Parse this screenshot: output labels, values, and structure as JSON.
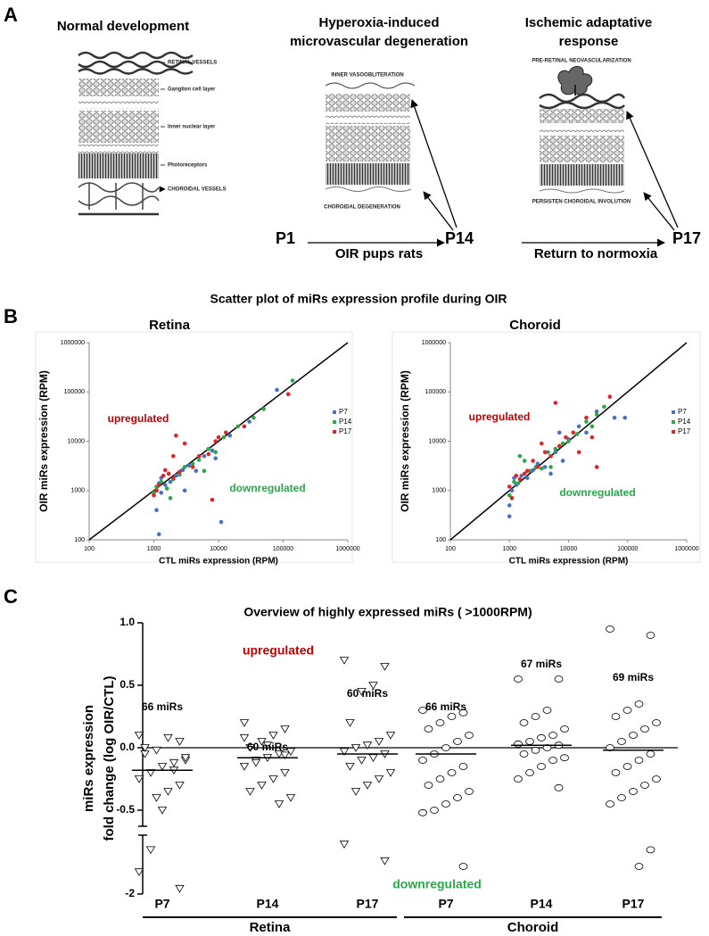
{
  "panel_labels": [
    "A",
    "B",
    "C"
  ],
  "figure_a": {
    "titles": [
      [
        "Normal development"
      ],
      [
        "Hyperoxia-induced",
        "microvascular degeneration"
      ],
      [
        "Ischemic adaptative",
        "response"
      ]
    ],
    "layer_labels": [
      "RETINAL VESSELS",
      "Ganglion cell layer",
      "Inner nuclear layer",
      "Photoreceptors",
      "CHOROIDAL VESSELS",
      "INNER VASOOBLITERATION",
      "CHOROIDAL DEGENERATION",
      "PRE-RETINAL NEOVASCULARIZATION",
      "PERSISTEN CHOROIDAL INVOLUTION"
    ],
    "timeline": {
      "points": [
        "P1",
        "P14",
        "P17"
      ],
      "phases": [
        "OIR pups rats",
        "Return to normoxia"
      ]
    }
  },
  "section_b_title": "Scatter plot of miRs expression profile during OIR",
  "chart_data": [
    {
      "type": "scatter",
      "title": "Retina",
      "xlabel": "CTL miRs expression (RPM)",
      "ylabel": "OIR miRs expression (RPM)",
      "log_scale": true,
      "xlim": [
        100,
        1000000
      ],
      "ylim": [
        100,
        1000000
      ],
      "xticks": [
        100,
        1000,
        10000,
        100000,
        1000000
      ],
      "yticks": [
        100,
        1000,
        10000,
        100000,
        1000000
      ],
      "identity_line": true,
      "legend": "right",
      "annotations": [
        {
          "text": "upregulated",
          "color": "#c00000"
        },
        {
          "text": "downregulated",
          "color": "#2aa84a"
        }
      ],
      "series": [
        {
          "name": "P7",
          "color": "#4a6fc7",
          "x": [
            1100,
            1200,
            1300,
            1500,
            1800,
            2200,
            2800,
            3500,
            4500,
            6000,
            8000,
            9000,
            11000,
            15000,
            30000,
            80000,
            1200,
            1100,
            1300,
            3000
          ],
          "y": [
            1000,
            1400,
            900,
            1300,
            1500,
            2000,
            2600,
            3200,
            2500,
            5000,
            6500,
            4500,
            230,
            13000,
            25000,
            110000,
            130,
            400,
            1800,
            1000
          ]
        },
        {
          "name": "P14",
          "color": "#2aa84a",
          "x": [
            1000,
            1100,
            1300,
            1600,
            2000,
            2500,
            3000,
            4000,
            5000,
            7000,
            9000,
            12000,
            20000,
            35000,
            50000,
            140000,
            6000,
            1800
          ],
          "y": [
            900,
            1200,
            1500,
            1100,
            1700,
            2100,
            3000,
            3500,
            4200,
            7000,
            6000,
            12000,
            20000,
            30000,
            45000,
            170000,
            2500,
            700
          ]
        },
        {
          "name": "P17",
          "color": "#e0242a",
          "x": [
            1000,
            1100,
            1200,
            1400,
            1700,
            2000,
            2500,
            3000,
            4000,
            5000,
            7000,
            9000,
            10000,
            13000,
            25000,
            120000,
            8000,
            1500,
            2200,
            2000
          ],
          "y": [
            800,
            1000,
            1300,
            2000,
            2200,
            1800,
            2400,
            9000,
            3000,
            5000,
            5500,
            10000,
            12000,
            15000,
            20000,
            90000,
            650,
            2600,
            13000,
            5000
          ]
        }
      ]
    },
    {
      "type": "scatter",
      "title": "Choroid",
      "xlabel": "CTL miRs expression (RPM)",
      "ylabel": "OIR miRs expression (RPM)",
      "log_scale": true,
      "xlim": [
        100,
        1000000
      ],
      "ylim": [
        100,
        1000000
      ],
      "xticks": [
        100,
        1000,
        10000,
        100000,
        1000000
      ],
      "yticks": [
        100,
        1000,
        10000,
        100000,
        1000000
      ],
      "identity_line": true,
      "legend": "right",
      "annotations": [
        {
          "text": "upregulated",
          "color": "#c00000"
        },
        {
          "text": "downregulated",
          "color": "#2aa84a"
        }
      ],
      "series": [
        {
          "name": "P7",
          "color": "#4a6fc7",
          "x": [
            1000,
            1000,
            1100,
            1300,
            1600,
            2000,
            2500,
            3000,
            4000,
            5000,
            6000,
            8000,
            10000,
            15000,
            20000,
            30000,
            60000,
            90000,
            1200,
            7000
          ],
          "y": [
            300,
            500,
            1000,
            1300,
            2000,
            1800,
            2600,
            3500,
            3000,
            2200,
            6000,
            4000,
            11000,
            20000,
            15000,
            40000,
            30000,
            30000,
            1800,
            15000
          ]
        },
        {
          "name": "P14",
          "color": "#2aa84a",
          "x": [
            1000,
            1200,
            1400,
            1800,
            2200,
            2800,
            3500,
            4500,
            6000,
            8000,
            10000,
            14000,
            20000,
            30000,
            40000,
            1500,
            5000,
            25000
          ],
          "y": [
            800,
            1500,
            1400,
            4000,
            2500,
            3000,
            2800,
            6000,
            7000,
            9000,
            10000,
            14000,
            25000,
            35000,
            50000,
            5000,
            3000,
            20000
          ]
        },
        {
          "name": "P17",
          "color": "#e0242a",
          "x": [
            1000,
            1100,
            1300,
            1500,
            2000,
            2500,
            3000,
            4000,
            5000,
            6000,
            7000,
            9000,
            12000,
            15000,
            20000,
            30000,
            50000,
            1800,
            3500,
            25000
          ],
          "y": [
            1200,
            700,
            2000,
            1700,
            2500,
            4000,
            3000,
            6000,
            5000,
            60000,
            8000,
            12000,
            15000,
            6000,
            30000,
            3000,
            80000,
            2200,
            9000,
            12000
          ]
        }
      ]
    },
    {
      "type": "dotplot",
      "title": "Overview of highly expressed miRs ( >1000RPM)",
      "ylabel": [
        "miRs expression",
        "fold change (log OIR/CTL)"
      ],
      "ylim": [
        -2,
        1
      ],
      "ybreak": [
        -1.5,
        -0.6
      ],
      "yticks": [
        {
          "value": 1,
          "label": "1.0"
        },
        0.5,
        {
          "value": 0,
          "label": "0.0"
        },
        -0.5,
        -2
      ],
      "zero_line": true,
      "annotations": [
        {
          "text": "upregulated",
          "color": "#c00000"
        },
        {
          "text": "downregulated",
          "color": "#2aa84a"
        }
      ],
      "tissues": [
        {
          "name": "Retina",
          "marker": "triangle",
          "groups": [
            {
              "name": "P7",
              "count_label": "66 miRs",
              "mean": -0.18,
              "values": [
                0.1,
                0.05,
                0.08,
                -0.02,
                -0.05,
                -0.1,
                -0.12,
                -0.15,
                -0.2,
                -0.25,
                -0.3,
                -0.35,
                -0.4,
                0.0,
                -0.08,
                -0.18,
                -0.5,
                -1.6,
                -1.8,
                -1.95
              ]
            },
            {
              "name": "P14",
              "count_label": "60 miRs",
              "mean": -0.08,
              "values": [
                0.2,
                0.15,
                0.1,
                0.05,
                0.0,
                -0.03,
                -0.05,
                -0.08,
                -0.1,
                -0.15,
                -0.2,
                -0.25,
                -0.3,
                -0.35,
                -0.4,
                -0.45,
                0.02,
                -0.12,
                0.08,
                -0.06
              ]
            },
            {
              "name": "P17",
              "count_label": "60 miRs",
              "mean": -0.05,
              "values": [
                0.7,
                0.65,
                0.5,
                0.45,
                0.2,
                0.1,
                0.05,
                0.02,
                0.0,
                -0.03,
                -0.05,
                -0.08,
                -0.1,
                -0.15,
                -0.2,
                -0.25,
                -0.3,
                -0.35,
                -1.55,
                -1.7
              ]
            }
          ]
        },
        {
          "name": "Choroid",
          "marker": "circle",
          "groups": [
            {
              "name": "P7",
              "count_label": "66 miRs",
              "mean": -0.05,
              "values": [
                0.3,
                0.28,
                0.25,
                0.2,
                0.15,
                0.1,
                0.05,
                0.0,
                -0.05,
                -0.1,
                -0.15,
                -0.2,
                -0.25,
                -0.3,
                -0.35,
                -0.4,
                -0.45,
                -0.5,
                -0.52,
                -1.75
              ]
            },
            {
              "name": "P14",
              "count_label": "67 miRs",
              "mean": 0.02,
              "values": [
                0.55,
                0.55,
                0.3,
                0.25,
                0.2,
                0.15,
                0.1,
                0.08,
                0.05,
                0.03,
                0.02,
                0.0,
                -0.02,
                -0.05,
                -0.08,
                -0.1,
                -0.15,
                -0.2,
                -0.25,
                -0.32
              ]
            },
            {
              "name": "P17",
              "count_label": "69 miRs",
              "mean": -0.02,
              "values": [
                0.95,
                0.9,
                0.35,
                0.3,
                0.25,
                0.2,
                0.15,
                0.1,
                0.05,
                0.0,
                -0.05,
                -0.1,
                -0.15,
                -0.2,
                -0.25,
                -0.3,
                -0.35,
                -0.4,
                -0.45,
                -1.6,
                -1.75
              ]
            }
          ]
        }
      ]
    }
  ]
}
